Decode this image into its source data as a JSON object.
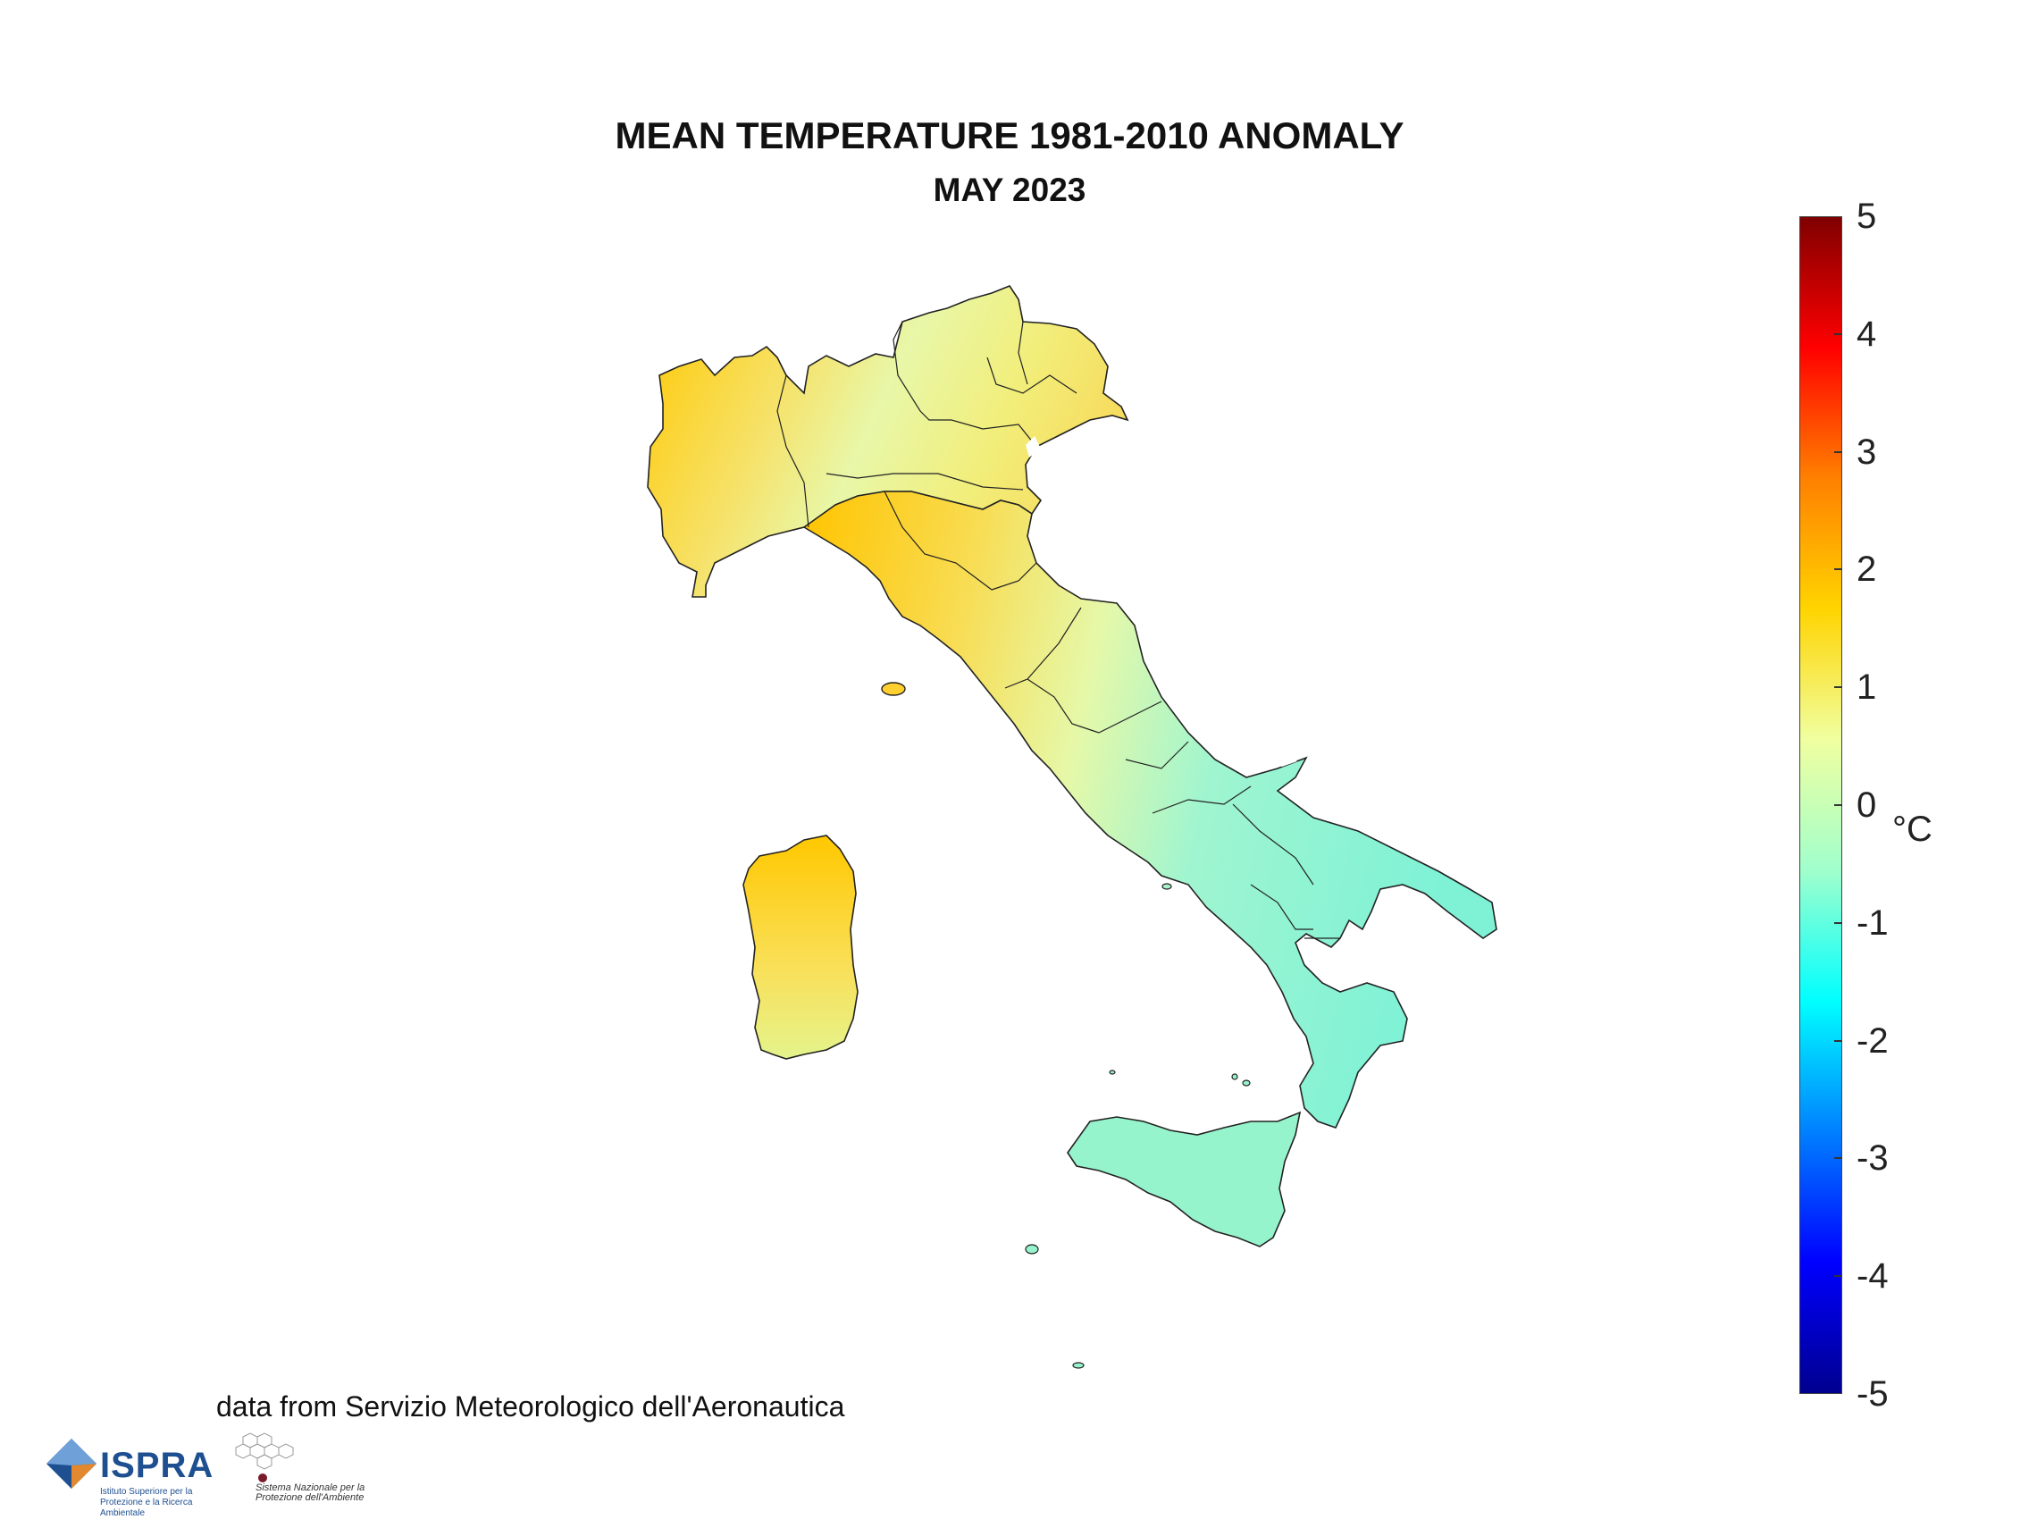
{
  "title": "MEAN TEMPERATURE 1981-2010 ANOMALY",
  "subtitle": "MAY 2023",
  "colorbar": {
    "unit": "°C",
    "range": [
      -5,
      5
    ],
    "ticks": [
      "5",
      "4",
      "3",
      "2",
      "1",
      "0",
      "-1",
      "-2",
      "-3",
      "-4",
      "-5"
    ],
    "colors": [
      "#00008f",
      "#0000ff",
      "#0080ff",
      "#00ffff",
      "#a0ffcc",
      "#f0ffa0",
      "#ffd400",
      "#ff8000",
      "#ff0000",
      "#800000"
    ]
  },
  "source": "data from Servizio Meteorologico dell'Aeronautica",
  "logos": {
    "ispra_name": "ISPRA",
    "ispra_sub": "Istituto Superiore per la Protezione e la Ricerca Ambientale",
    "snpa_sub": "Sistema Nazionale per la Protezione dell'Ambiente"
  },
  "map": {
    "regions_anomaly": {
      "north_west": 1.2,
      "north_east": 0.6,
      "po_valley": 0.1,
      "adriatic_centre": -0.6,
      "tyrrhenian_centre": 1.0,
      "sardinia": 0.9,
      "south": -0.4,
      "sicily": -0.4
    }
  }
}
